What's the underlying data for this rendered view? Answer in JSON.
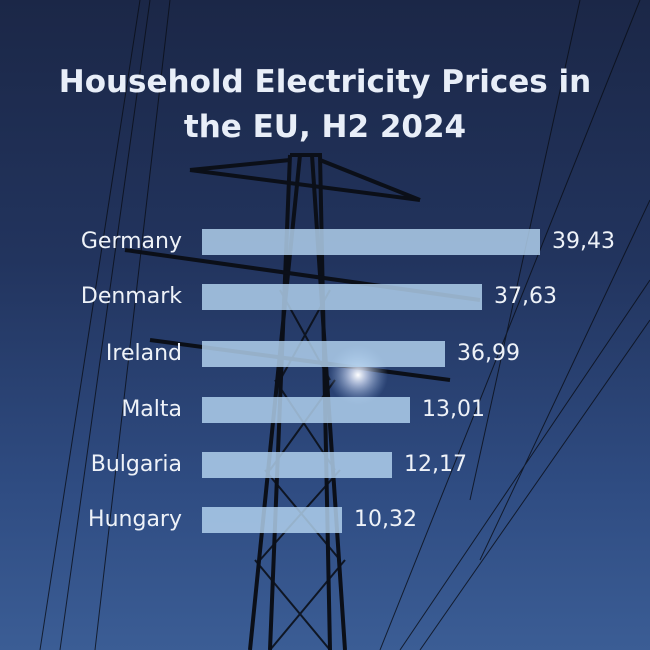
{
  "chart_data": {
    "type": "bar",
    "orientation": "horizontal",
    "title": "Household Electricity Prices in the EU, H2 2024",
    "title_lines": [
      "Household Electricity Prices in",
      "the EU, H2 2024"
    ],
    "categories": [
      "Germany",
      "Denmark",
      "Ireland",
      "Malta",
      "Bulgaria",
      "Hungary"
    ],
    "values": [
      39.43,
      37.63,
      36.99,
      13.01,
      12.17,
      10.32
    ],
    "value_labels": [
      "39,43",
      "37,63",
      "36,99",
      "13,01",
      "12,17",
      "10,32"
    ],
    "xlabel": "",
    "ylabel": "",
    "grid": false,
    "bar_color": "#b4d4f0",
    "background": "photo of electricity pylon against blue sky with sun"
  }
}
